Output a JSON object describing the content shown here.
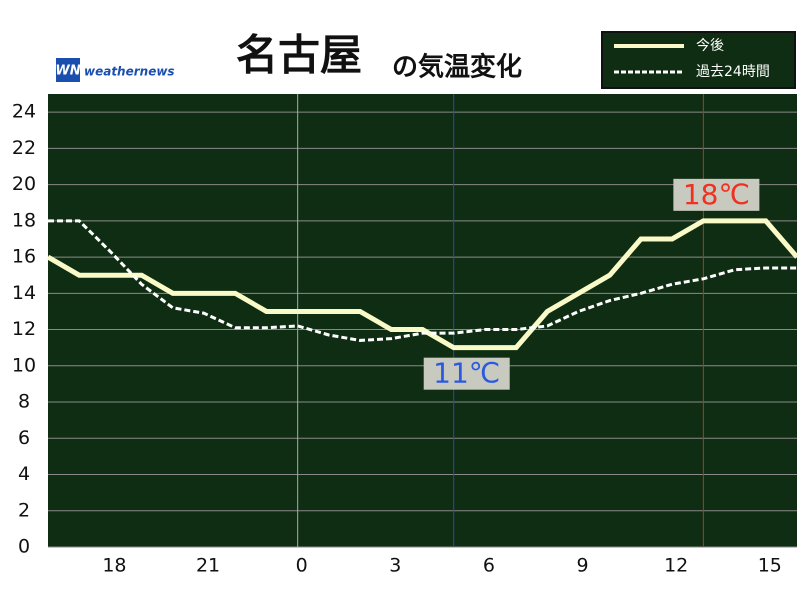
{
  "chart_data": {
    "type": "line",
    "title": "名古屋",
    "subtitle": "の気温変化",
    "logo": {
      "mark": "WN",
      "text": "weathernews"
    },
    "x": [
      16,
      17,
      18,
      19,
      20,
      21,
      22,
      23,
      24,
      25,
      26,
      27,
      28,
      29,
      30,
      31,
      32,
      33,
      34,
      35,
      36,
      37,
      38,
      39,
      40
    ],
    "series": [
      {
        "name": "今後",
        "color": "#fafac8",
        "dashed": false,
        "values": [
          16,
          15,
          15,
          15,
          14,
          14,
          14,
          13,
          13,
          13,
          13,
          12,
          12,
          11,
          11,
          11,
          13,
          14,
          15,
          17,
          17,
          18,
          18,
          18,
          16
        ]
      },
      {
        "name": "過去24時間",
        "color": "#ffffff",
        "dashed": true,
        "values": [
          18,
          18,
          16.3,
          14.5,
          13.2,
          12.9,
          12.1,
          12.1,
          12.2,
          11.7,
          11.4,
          11.5,
          11.8,
          11.8,
          12,
          12,
          12.2,
          13,
          13.6,
          14,
          14.5,
          14.8,
          15.3,
          15.4,
          15.4
        ]
      }
    ],
    "annotations": [
      {
        "text": "11℃",
        "x": 29,
        "value": 11,
        "color": "#2a5ae0",
        "line_color": "#2a4ab0",
        "place": "below"
      },
      {
        "text": "18℃",
        "x": 37,
        "value": 18,
        "color": "#f03020",
        "line_color": "#c03020",
        "place": "above"
      }
    ],
    "xlim": [
      16,
      40
    ],
    "xticks": [
      18,
      21,
      {
        "value": 24,
        "label": "0"
      },
      {
        "value": 27,
        "label": "3"
      },
      {
        "value": 30,
        "label": "6"
      },
      {
        "value": 33,
        "label": "9"
      },
      {
        "value": 36,
        "label": "12"
      },
      {
        "value": 39,
        "label": "15"
      }
    ],
    "ylim": [
      0,
      25
    ],
    "yticks": [
      0,
      2,
      4,
      6,
      8,
      10,
      12,
      14,
      16,
      18,
      20,
      22,
      24
    ],
    "grid": true,
    "background": "#0f2d12",
    "legend": "top-right"
  }
}
